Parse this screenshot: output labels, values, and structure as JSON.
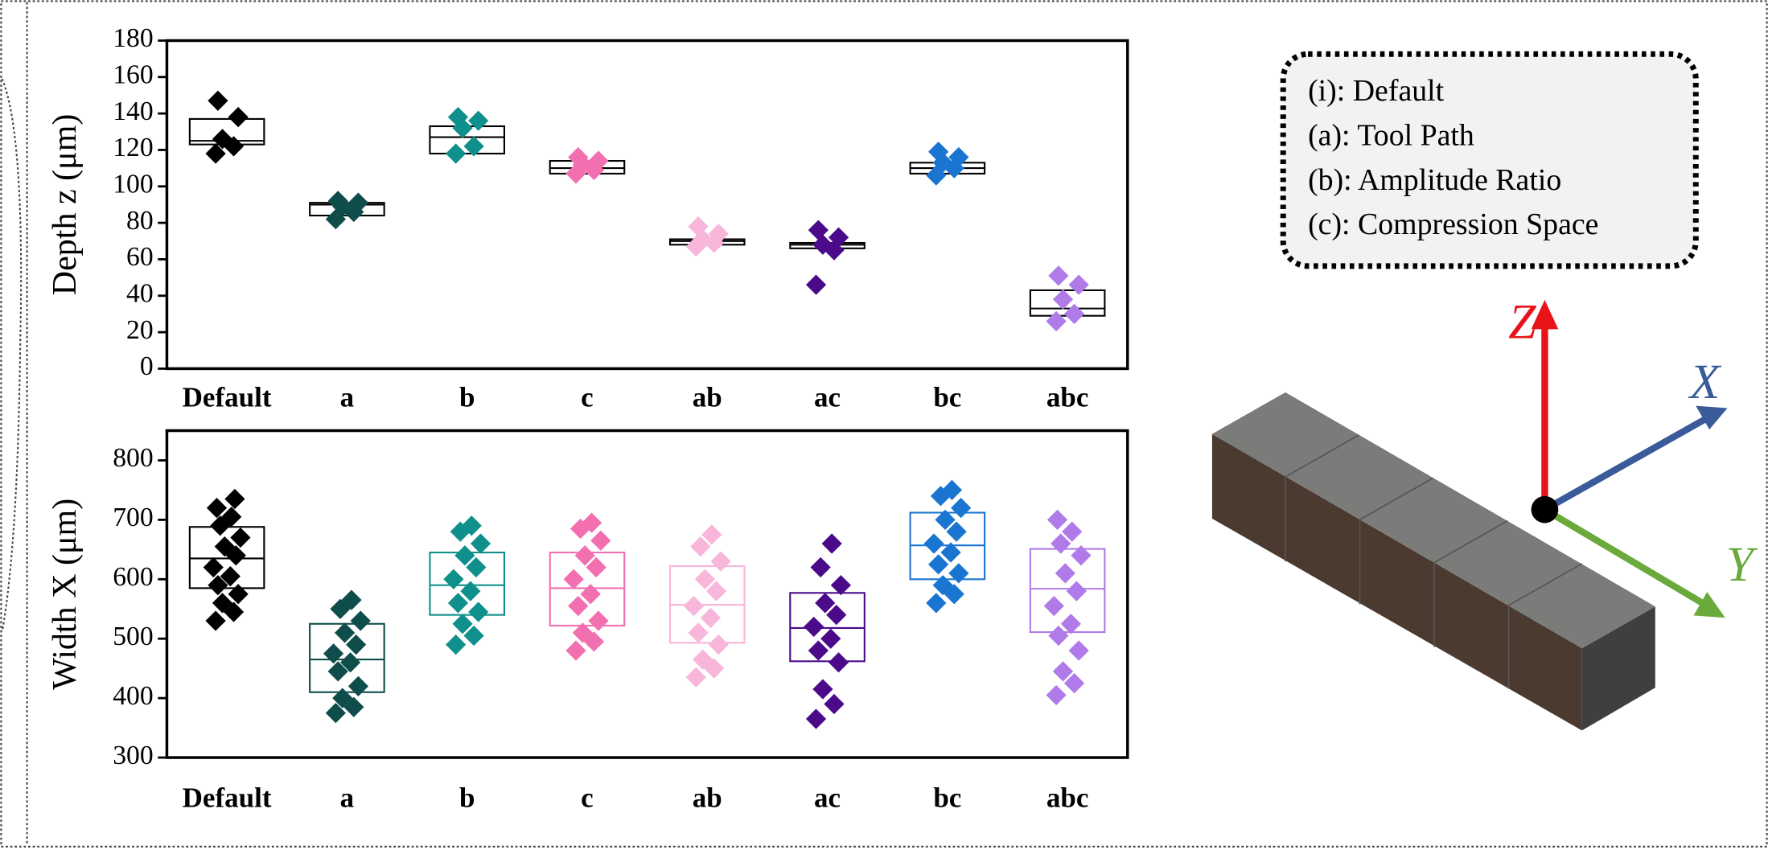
{
  "chart_data": [
    {
      "type": "box",
      "ylabel": "Depth z (μm)",
      "box_colored": false,
      "categories": [
        "Default",
        "a",
        "b",
        "c",
        "ab",
        "ac",
        "bc",
        "abc"
      ],
      "ylim": [
        0,
        180
      ],
      "yticks": [
        0,
        20,
        40,
        60,
        80,
        100,
        120,
        140,
        160,
        180
      ],
      "boxes": [
        {
          "color": "#000000",
          "q1": 123,
          "median": 125,
          "q3": 137,
          "points": [
            118,
            122,
            126,
            138,
            147
          ]
        },
        {
          "color": "#0e4d4a",
          "q1": 84,
          "median": 90,
          "q3": 91,
          "points": [
            82,
            86,
            89,
            91,
            92
          ]
        },
        {
          "color": "#10908c",
          "q1": 118,
          "median": 127,
          "q3": 133,
          "points": [
            118,
            122,
            132,
            136,
            138
          ]
        },
        {
          "color": "#f26fb0",
          "q1": 107,
          "median": 110,
          "q3": 114,
          "points": [
            107,
            109,
            112,
            114,
            116
          ]
        },
        {
          "color": "#f8b6da",
          "q1": 68,
          "median": 70,
          "q3": 71,
          "points": [
            67,
            69,
            71,
            74,
            78
          ]
        },
        {
          "color": "#4b0a8a",
          "q1": 66,
          "median": 68,
          "q3": 69,
          "points": [
            46,
            65,
            68,
            72,
            76
          ]
        },
        {
          "color": "#1a75d1",
          "q1": 107,
          "median": 110,
          "q3": 113,
          "points": [
            106,
            110,
            113,
            116,
            119
          ]
        },
        {
          "color": "#b07be8",
          "q1": 29,
          "median": 33,
          "q3": 43,
          "points": [
            26,
            30,
            38,
            46,
            51
          ]
        }
      ]
    },
    {
      "type": "box",
      "ylabel": "Width X (μm)",
      "box_colored": true,
      "categories": [
        "Default",
        "a",
        "b",
        "c",
        "ab",
        "ac",
        "bc",
        "abc"
      ],
      "ylim": [
        300,
        850
      ],
      "yticks": [
        300,
        400,
        500,
        600,
        700,
        800
      ],
      "boxes": [
        {
          "color": "#000000",
          "q1": 585,
          "median": 635,
          "q3": 688,
          "points": [
            530,
            545,
            560,
            575,
            590,
            605,
            620,
            640,
            655,
            670,
            690,
            705,
            720,
            735
          ]
        },
        {
          "color": "#0e4d4a",
          "q1": 410,
          "median": 465,
          "q3": 525,
          "points": [
            375,
            385,
            400,
            420,
            445,
            460,
            475,
            490,
            510,
            530,
            550,
            565
          ]
        },
        {
          "color": "#10908c",
          "q1": 540,
          "median": 590,
          "q3": 645,
          "points": [
            490,
            505,
            525,
            545,
            560,
            580,
            600,
            620,
            640,
            660,
            680,
            690
          ]
        },
        {
          "color": "#f26fb0",
          "q1": 522,
          "median": 585,
          "q3": 645,
          "points": [
            480,
            495,
            510,
            530,
            555,
            575,
            600,
            620,
            640,
            665,
            685,
            695
          ]
        },
        {
          "color": "#f8b6da",
          "q1": 493,
          "median": 557,
          "q3": 622,
          "points": [
            435,
            450,
            465,
            490,
            510,
            535,
            555,
            580,
            600,
            630,
            655,
            675
          ]
        },
        {
          "color": "#4b0a8a",
          "q1": 462,
          "median": 518,
          "q3": 577,
          "points": [
            365,
            390,
            415,
            460,
            480,
            500,
            520,
            540,
            560,
            590,
            620,
            660
          ]
        },
        {
          "color": "#1a75d1",
          "q1": 600,
          "median": 657,
          "q3": 712,
          "points": [
            560,
            575,
            590,
            610,
            625,
            645,
            660,
            680,
            700,
            720,
            740,
            750
          ]
        },
        {
          "color": "#b07be8",
          "q1": 511,
          "median": 584,
          "q3": 651,
          "points": [
            405,
            425,
            445,
            480,
            505,
            525,
            555,
            580,
            610,
            640,
            660,
            680,
            700
          ]
        }
      ]
    }
  ],
  "legend_note": {
    "lines": [
      "(i): Default",
      "(a): Tool Path",
      "(b): Amplitude Ratio",
      "(c): Compression Space"
    ]
  },
  "axes_diagram": {
    "labels": [
      "Z",
      "X",
      "Y"
    ]
  }
}
